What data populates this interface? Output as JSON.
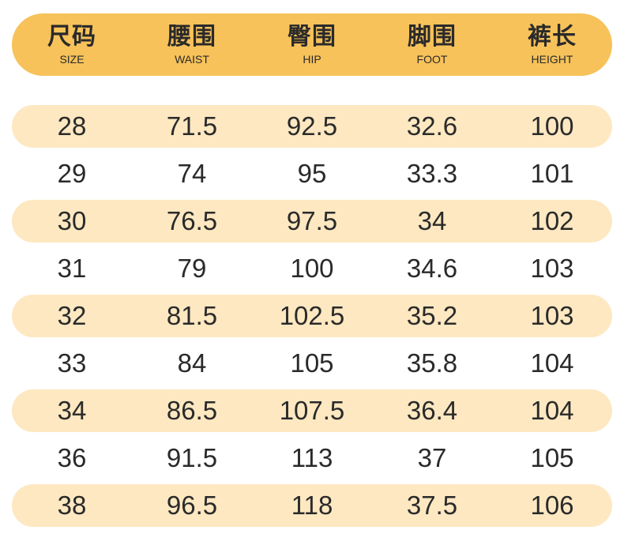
{
  "header": [
    {
      "cn": "尺码",
      "en": "SIZE"
    },
    {
      "cn": "腰围",
      "en": "WAIST"
    },
    {
      "cn": "臀围",
      "en": "HIP"
    },
    {
      "cn": "脚围",
      "en": "FOOT"
    },
    {
      "cn": "裤长",
      "en": "HEIGHT"
    }
  ],
  "rows": [
    [
      "28",
      "71.5",
      "92.5",
      "32.6",
      "100"
    ],
    [
      "29",
      "74",
      "95",
      "33.3",
      "101"
    ],
    [
      "30",
      "76.5",
      "97.5",
      "34",
      "102"
    ],
    [
      "31",
      "79",
      "100",
      "34.6",
      "103"
    ],
    [
      "32",
      "81.5",
      "102.5",
      "35.2",
      "103"
    ],
    [
      "33",
      "84",
      "105",
      "35.8",
      "104"
    ],
    [
      "34",
      "86.5",
      "107.5",
      "36.4",
      "104"
    ],
    [
      "36",
      "91.5",
      "113",
      "37",
      "105"
    ],
    [
      "38",
      "96.5",
      "118",
      "37.5",
      "106"
    ]
  ],
  "colors": {
    "header_bg": "#f7c25a",
    "band_bg": "#fde8c1",
    "text": "#2a2a2a"
  }
}
